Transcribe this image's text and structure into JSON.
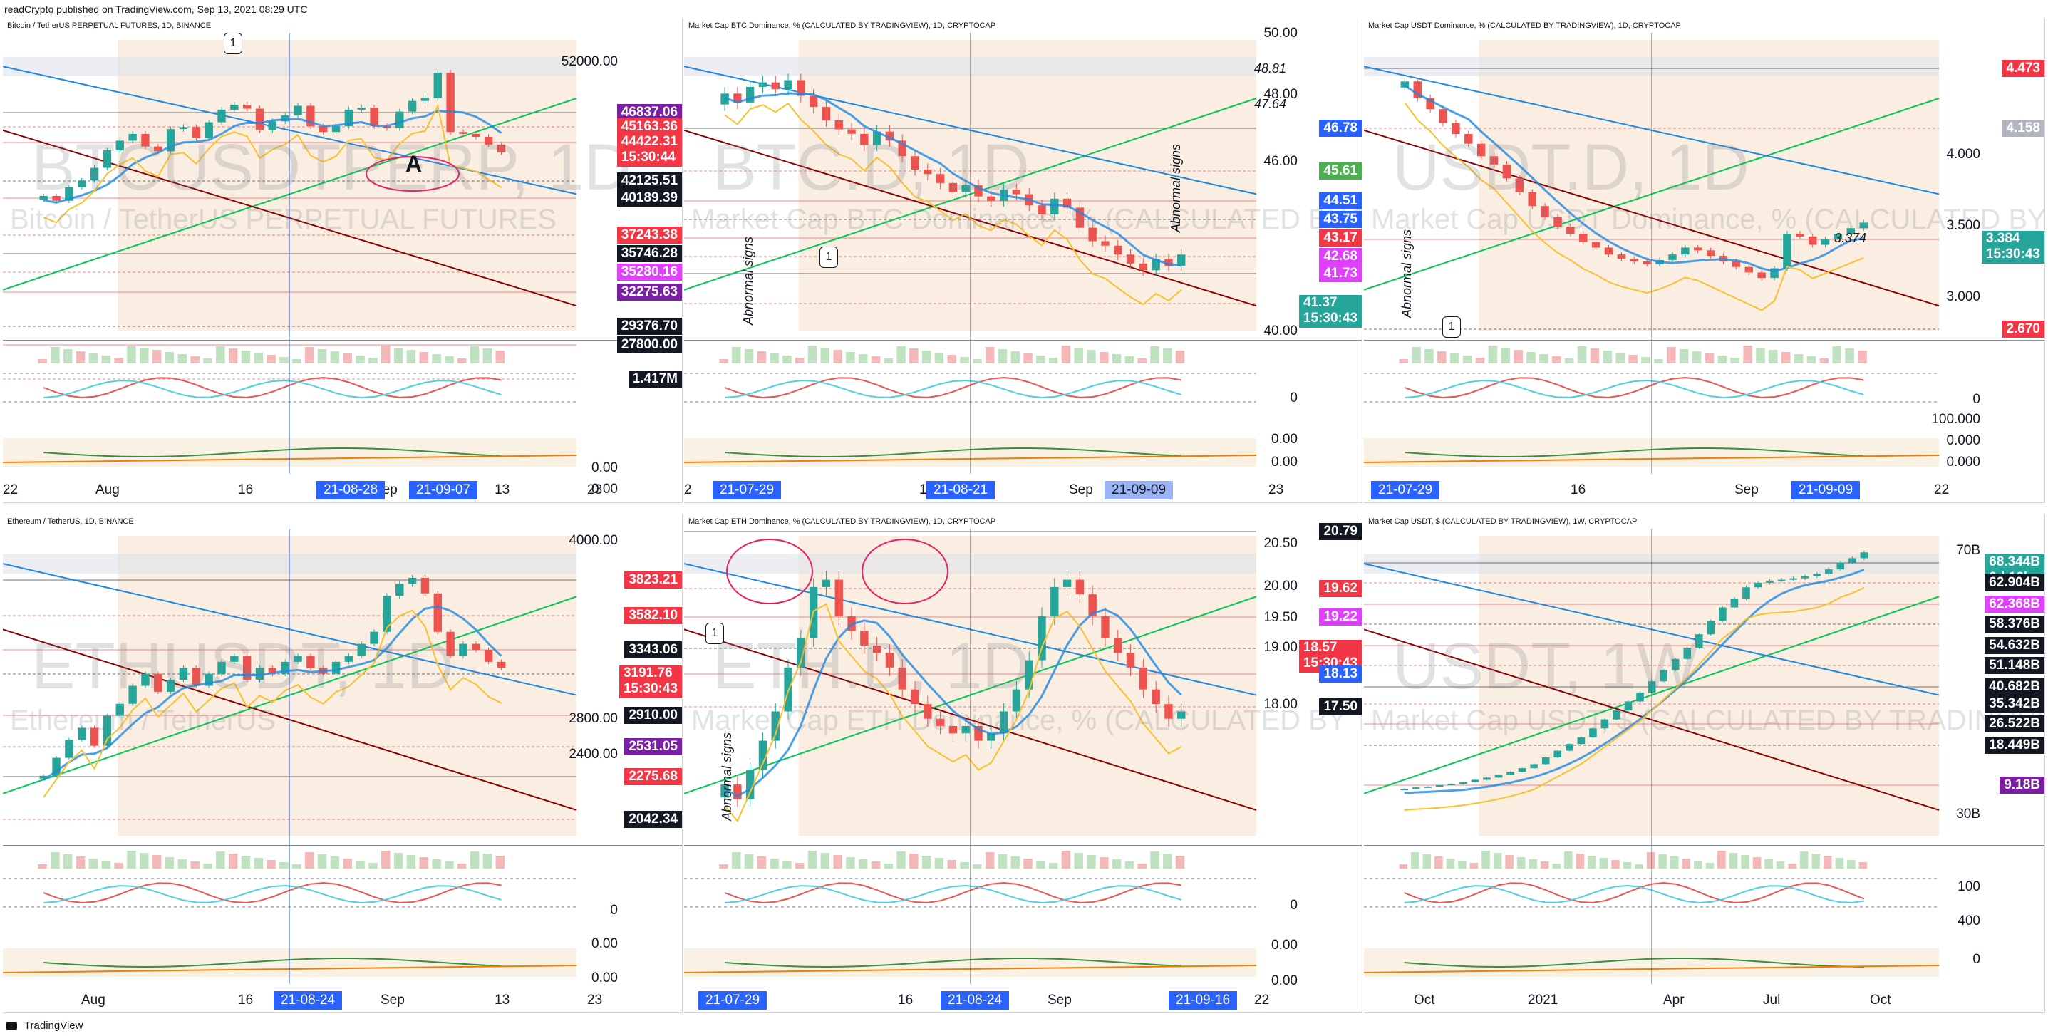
{
  "header": {
    "publisher_line": "readCrypto published on TradingView.com, Sep 13, 2021 08:29 UTC"
  },
  "footer": {
    "brand": "TradingView"
  },
  "colors": {
    "up": "#26a69a",
    "down": "#ef5350",
    "blue_line": "#2962ff",
    "cloud": "#f7e7d4",
    "tag_red": "#f23645",
    "tag_black": "#131722",
    "tag_blue": "#2962ff",
    "tag_green": "#4caf50",
    "tag_magenta": "#e040fb",
    "tag_teal": "#26a69a",
    "tag_gray": "#b2b5be"
  },
  "chart_data": [
    {
      "id": "btcusdt",
      "type": "candlestick",
      "title": "Bitcoin / TetherUS PERPETUAL FUTURES, 1D, BINANCE",
      "watermark": "BTCUSDTPERP, 1D",
      "watermark_sub": "Bitcoin / TetherUS PERPETUAL FUTURES",
      "price_labels": [
        {
          "text": "46837.06",
          "color": "#7b1fa2"
        },
        {
          "text": "45163.36",
          "color": "#f23645"
        },
        {
          "text": "44422.31",
          "sub": "15:30:44",
          "color": "#f23645"
        },
        {
          "text": "42125.51",
          "color": "#131722"
        },
        {
          "text": "40189.39",
          "color": "#131722"
        },
        {
          "text": "37243.38",
          "color": "#f23645"
        },
        {
          "text": "35746.28",
          "color": "#131722"
        },
        {
          "text": "35280.16",
          "color": "#e040fb"
        },
        {
          "text": "32275.63",
          "color": "#7b1fa2"
        },
        {
          "text": "29376.70",
          "color": "#131722"
        },
        {
          "text": "27800.00",
          "color": "#131722"
        },
        {
          "text": "1.417M",
          "color": "#131722"
        }
      ],
      "scale_labels": [
        "52000.00",
        "0.00",
        "0.00"
      ],
      "x_labels": [
        "22",
        "Aug",
        "16",
        "Sep",
        "13",
        "23"
      ],
      "x_highlights": [
        "21-08-28",
        "21-09-07"
      ],
      "annotations": [
        "1",
        "A"
      ],
      "y_range": [
        26000,
        56000
      ],
      "closes": [
        39900,
        39400,
        40800,
        41500,
        42800,
        44600,
        45600,
        46300,
        45000,
        44500,
        46800,
        47000,
        45900,
        47500,
        48800,
        49300,
        48900,
        46700,
        47600,
        48200,
        49200,
        47100,
        46500,
        47100,
        48800,
        49000,
        47100,
        46900,
        48600,
        49700,
        50000,
        52600,
        46500,
        46300,
        46000,
        45200,
        44400
      ]
    },
    {
      "id": "btcd",
      "type": "candlestick",
      "title": "Market Cap BTC Dominance, % (CALCULATED BY TRADINGVIEW), 1D, CRYPTOCAP",
      "watermark": "BTC.D, 1D",
      "watermark_sub": "Market Cap BTC Dominance, % (CALCULATED BY TRADINGVIEW)",
      "price_labels": [
        {
          "text": "46.78",
          "color": "#2962ff"
        },
        {
          "text": "45.61",
          "color": "#4caf50"
        },
        {
          "text": "44.51",
          "color": "#2962ff"
        },
        {
          "text": "43.75",
          "color": "#2962ff"
        },
        {
          "text": "43.17",
          "color": "#f23645"
        },
        {
          "text": "42.68",
          "color": "#e040fb"
        },
        {
          "text": "41.73",
          "color": "#e040fb"
        },
        {
          "text": "41.37",
          "sub": "15:30:43",
          "color": "#26a69a"
        }
      ],
      "scale_labels": [
        "50.00",
        "48.00",
        "46.00",
        "40.00",
        "0",
        "0.00",
        "0.00"
      ],
      "x_labels": [
        "2",
        "16",
        "Sep",
        "23"
      ],
      "x_highlights": [
        "21-07-29",
        "21-08-21",
        "21-09-09"
      ],
      "annotations": [
        "1",
        "Abnormal signs",
        "Abnormal signs",
        "48.81",
        "47.64"
      ],
      "y_range": [
        38,
        51
      ],
      "closes": [
        48.6,
        48.2,
        48.9,
        49.1,
        48.8,
        49.2,
        48.5,
        48.0,
        47.4,
        47.0,
        46.8,
        46.3,
        46.9,
        46.5,
        45.8,
        45.2,
        45.0,
        44.6,
        44.2,
        44.5,
        44.0,
        43.8,
        44.3,
        44.1,
        43.6,
        43.2,
        43.9,
        43.5,
        42.6,
        42.0,
        41.8,
        41.4,
        41.0,
        40.7,
        41.2,
        40.9,
        41.4
      ]
    },
    {
      "id": "usdtd",
      "type": "candlestick",
      "title": "Market Cap USDT Dominance, % (CALCULATED BY TRADINGVIEW), 1D, CRYPTOCAP",
      "watermark": "USDT.D, 1D",
      "watermark_sub": "Market Cap USDT Dominance, % (CALCULATED BY TRADINGVIEW)",
      "price_labels": [
        {
          "text": "4.473",
          "color": "#f23645"
        },
        {
          "text": "4.158",
          "color": "#b2b5be"
        },
        {
          "text": "3.384",
          "sub": "15:30:43",
          "color": "#26a69a"
        },
        {
          "text": "2.670",
          "color": "#f23645"
        }
      ],
      "scale_labels": [
        "4.000",
        "3.500",
        "3.000",
        "0",
        "100.000",
        "0.000",
        "0.000"
      ],
      "x_labels": [
        "Oct",
        "16",
        "Sep",
        "22"
      ],
      "x_highlights": [
        "21-07-29",
        "21-09-09"
      ],
      "annotations": [
        "1",
        "Abnormal signs",
        "3.374"
      ],
      "y_range": [
        2.6,
        4.7
      ],
      "closes": [
        4.4,
        4.28,
        4.2,
        4.1,
        4.02,
        3.95,
        3.86,
        3.8,
        3.7,
        3.6,
        3.5,
        3.42,
        3.35,
        3.3,
        3.24,
        3.2,
        3.15,
        3.12,
        3.1,
        3.08,
        3.11,
        3.15,
        3.2,
        3.18,
        3.14,
        3.1,
        3.06,
        3.02,
        2.98,
        3.05,
        3.3,
        3.28,
        3.22,
        3.26,
        3.3,
        3.34,
        3.38
      ]
    },
    {
      "id": "ethusdt",
      "type": "candlestick",
      "title": "Ethereum / TetherUS, 1D, BINANCE",
      "watermark": "ETHUSDT, 1D",
      "watermark_sub": "Ethereum / TetherUS",
      "price_labels": [
        {
          "text": "3823.21",
          "color": "#f23645"
        },
        {
          "text": "3582.10",
          "color": "#f23645"
        },
        {
          "text": "3343.06",
          "color": "#131722"
        },
        {
          "text": "3191.76",
          "sub": "15:30:43",
          "color": "#f23645"
        },
        {
          "text": "2910.00",
          "color": "#131722"
        },
        {
          "text": "2531.05",
          "color": "#7b1fa2"
        },
        {
          "text": "2275.68",
          "color": "#f23645"
        },
        {
          "text": "2042.34",
          "color": "#131722"
        }
      ],
      "scale_labels": [
        "4000.00",
        "2800.00",
        "2400.00",
        "0",
        "0.00",
        "0.00"
      ],
      "x_labels": [
        "Aug",
        "16",
        "Sep",
        "13",
        "23"
      ],
      "x_highlights": [
        "21-08-24"
      ],
      "annotations": [],
      "y_range": [
        1800,
        4300
      ],
      "closes": [
        2300,
        2450,
        2600,
        2700,
        2550,
        2800,
        2900,
        3050,
        3150,
        3000,
        3100,
        3200,
        3050,
        3150,
        3250,
        3300,
        3100,
        3200,
        3150,
        3250,
        3300,
        3200,
        3150,
        3250,
        3300,
        3400,
        3500,
        3800,
        3900,
        3950,
        3820,
        3500,
        3300,
        3400,
        3350,
        3250,
        3200
      ]
    },
    {
      "id": "ethd",
      "type": "candlestick",
      "title": "Market Cap ETH Dominance, % (CALCULATED BY TRADINGVIEW), 1D, CRYPTOCAP",
      "watermark": "ETH.D, 1D",
      "watermark_sub": "Market Cap ETH Dominance, % (CALCULATED BY TRADINGVIEW)",
      "price_labels": [
        {
          "text": "20.79",
          "color": "#131722"
        },
        {
          "text": "19.62",
          "color": "#f23645"
        },
        {
          "text": "19.22",
          "color": "#e040fb"
        },
        {
          "text": "18.57",
          "sub": "15:30:43",
          "color": "#f23645"
        },
        {
          "text": "18.13",
          "color": "#2962ff"
        },
        {
          "text": "17.50",
          "color": "#131722"
        }
      ],
      "scale_labels": [
        "20.50",
        "20.00",
        "19.50",
        "19.00",
        "18.00",
        "0",
        "0.00",
        "0.00"
      ],
      "x_labels": [
        "16",
        "Sep",
        "22"
      ],
      "x_highlights": [
        "21-07-29",
        "21-08-24",
        "21-09-16"
      ],
      "annotations": [
        "1",
        "Abnormal signs"
      ],
      "y_range": [
        16.9,
        21.0
      ],
      "closes": [
        17.6,
        17.4,
        17.8,
        18.2,
        18.6,
        19.2,
        19.6,
        20.3,
        20.4,
        19.9,
        19.7,
        19.5,
        19.4,
        19.2,
        18.9,
        18.7,
        18.5,
        18.4,
        18.3,
        18.4,
        18.2,
        18.3,
        18.6,
        18.9,
        19.3,
        19.9,
        20.3,
        20.4,
        20.2,
        19.9,
        19.6,
        19.4,
        19.2,
        18.9,
        18.7,
        18.5,
        18.6
      ]
    },
    {
      "id": "usdt-mcap",
      "type": "candlestick",
      "title": "Market Cap USDT, $ (CALCULATED BY TRADINGVIEW), 1W, CRYPTOCAP",
      "watermark": "USDT, 1W",
      "watermark_sub": "Market Cap USDT, $ (CALCULATED BY TRADINGVIEW)",
      "price_labels": [
        {
          "text": "68.344B",
          "sub": "6d 16h",
          "color": "#26a69a"
        },
        {
          "text": "62.904B",
          "color": "#131722"
        },
        {
          "text": "62.368B",
          "color": "#e040fb"
        },
        {
          "text": "58.376B",
          "color": "#131722"
        },
        {
          "text": "54.632B",
          "color": "#131722"
        },
        {
          "text": "51.148B",
          "color": "#131722"
        },
        {
          "text": "40.682B",
          "color": "#131722"
        },
        {
          "text": "35.342B",
          "color": "#131722"
        },
        {
          "text": "26.522B",
          "color": "#131722"
        },
        {
          "text": "18.449B",
          "color": "#131722"
        },
        {
          "text": "9.18B",
          "color": "#7b1fa2"
        }
      ],
      "scale_labels": [
        "70B",
        "30B",
        "100",
        "400",
        "0"
      ],
      "x_labels": [
        "Oct",
        "2021",
        "Apr",
        "Jul",
        "Oct"
      ],
      "x_highlights": [],
      "annotations": [],
      "y_range": [
        5,
        72
      ],
      "closes": [
        15.5,
        15.8,
        16.0,
        16.3,
        16.6,
        17.0,
        17.5,
        18.0,
        18.6,
        19.3,
        20.1,
        21.0,
        22.5,
        24.0,
        25.5,
        27.0,
        29.0,
        31.0,
        33.0,
        35.0,
        37.0,
        39.5,
        42.0,
        44.5,
        47.0,
        50.0,
        53.0,
        56.0,
        58.0,
        60.5,
        61.5,
        62.0,
        62.2,
        62.5,
        63.0,
        63.5,
        64.5,
        66.0,
        67.0,
        68.3
      ]
    }
  ]
}
